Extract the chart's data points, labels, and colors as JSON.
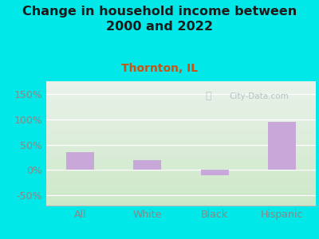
{
  "title": "Change in household income between\n2000 and 2022",
  "subtitle": "Thornton, IL",
  "categories": [
    "All",
    "White",
    "Black",
    "Hispanic"
  ],
  "values": [
    35,
    20,
    -10,
    95
  ],
  "bar_color": "#c8a8d8",
  "background_outer": "#00e8e8",
  "background_inner_top": "#eaf2ea",
  "background_inner_bottom": "#cde8c8",
  "title_color": "#1a1a1a",
  "subtitle_color": "#d05010",
  "tick_color": "#888888",
  "title_fontsize": 11.5,
  "subtitle_fontsize": 10,
  "tick_fontsize": 9,
  "yticks": [
    -50,
    0,
    50,
    100,
    150
  ],
  "ylim": [
    -70,
    175
  ],
  "xlim": [
    -0.5,
    3.5
  ],
  "watermark": "City-Data.com"
}
